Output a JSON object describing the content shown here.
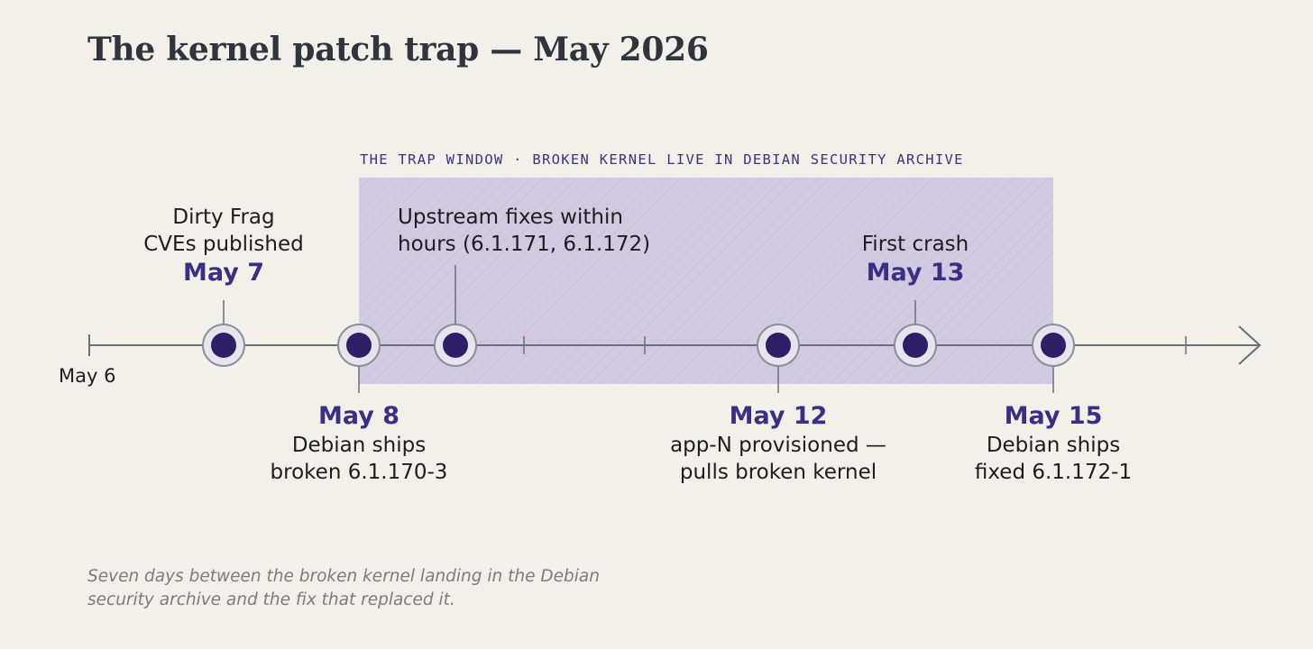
{
  "title": "The kernel patch trap — May 2026",
  "window_label": "THE TRAP WINDOW · BROKEN KERNEL LIVE IN DEBIAN SECURITY ARCHIVE",
  "start_label": "May 6",
  "events": {
    "may7": {
      "date": "May 7",
      "line1": "Dirty Frag",
      "line2": "CVEs published"
    },
    "upstream": {
      "line1": "Upstream fixes within",
      "line2": "hours (6.1.171, 6.1.172)"
    },
    "may13": {
      "date": "May 13",
      "line1": "First crash"
    },
    "may8": {
      "date": "May 8",
      "line1": "Debian ships",
      "line2": "broken 6.1.170-3"
    },
    "may12": {
      "date": "May 12",
      "line1": "app-N provisioned —",
      "line2": "pulls broken kernel"
    },
    "may15": {
      "date": "May 15",
      "line1": "Debian ships",
      "line2": "fixed 6.1.172-1"
    }
  },
  "caption": {
    "line1": "Seven days between the broken kernel landing in the Debian",
    "line2": "security archive and the fix that replaced it."
  },
  "colors": {
    "background": "#f3f0e9",
    "accent": "#3b2f85",
    "marker_fill": "#2e1f66",
    "axis": "#6b6f7c",
    "window_fill": "#a896d8"
  }
}
